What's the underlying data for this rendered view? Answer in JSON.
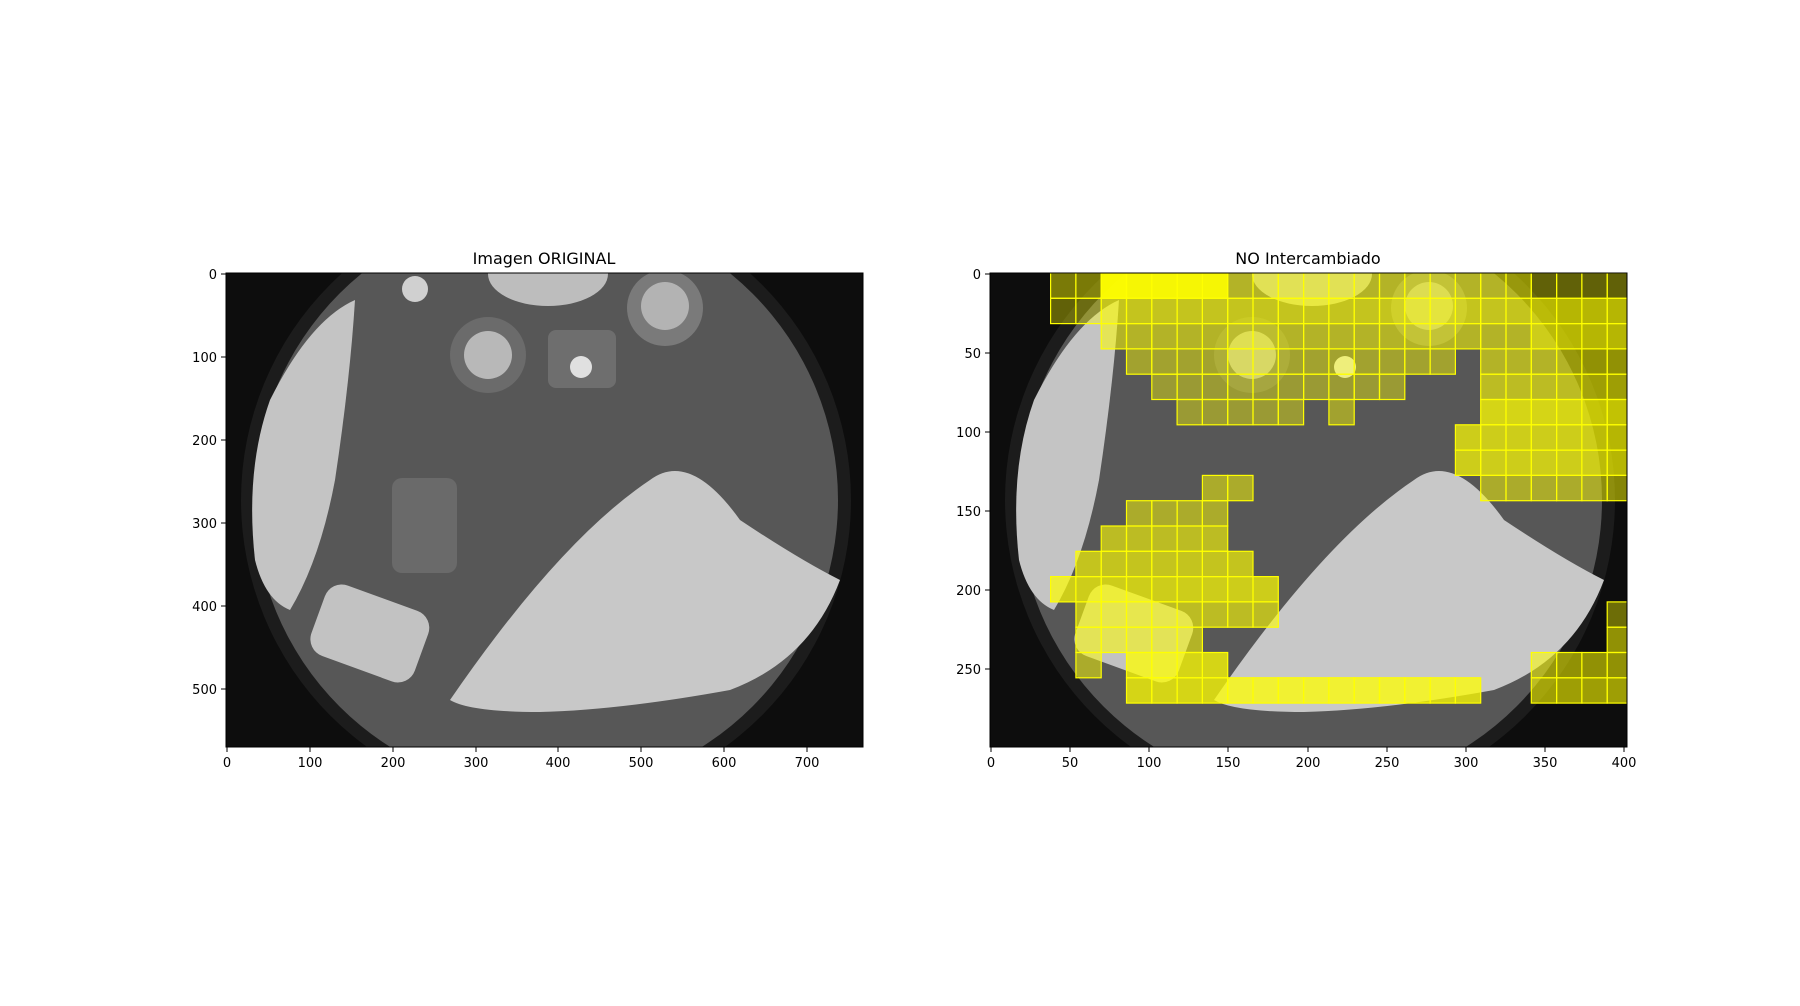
{
  "panels": [
    {
      "title": "Imagen ORIGINAL",
      "x_ticks": [
        "0",
        "100",
        "200",
        "300",
        "400",
        "500",
        "600",
        "700"
      ],
      "y_ticks": [
        "0",
        "100",
        "200",
        "300",
        "400",
        "500"
      ],
      "x_range": [
        0,
        768
      ],
      "y_range": [
        0,
        572
      ]
    },
    {
      "title": "NO Intercambiado",
      "x_ticks": [
        "0",
        "50",
        "100",
        "150",
        "200",
        "250",
        "300",
        "350",
        "400"
      ],
      "y_ticks": [
        "0",
        "50",
        "100",
        "150",
        "200",
        "250"
      ],
      "x_range": [
        0,
        402
      ],
      "y_range": [
        0,
        300
      ]
    }
  ],
  "overlay_color": "#ffff00",
  "image_description_colors": {
    "background": "#000000",
    "wheel": "#c8c8c8",
    "spoke": "#4a4a4a"
  }
}
